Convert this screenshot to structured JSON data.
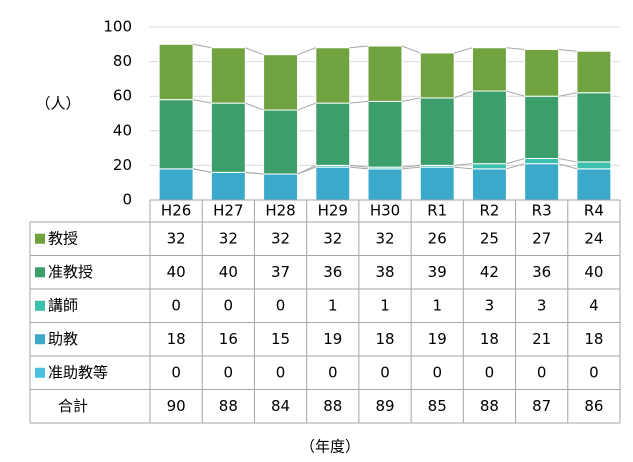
{
  "chart_data": {
    "type": "stacked_bar",
    "y_label": "（人）",
    "x_label": "（年度）",
    "categories": [
      "H26",
      "H27",
      "H28",
      "H29",
      "H30",
      "R1",
      "R2",
      "R3",
      "R4"
    ],
    "series": [
      {
        "name": "教授",
        "color": "#70a33f",
        "values": [
          32,
          32,
          32,
          32,
          32,
          26,
          25,
          27,
          24
        ]
      },
      {
        "name": "准教授",
        "color": "#3b9e6b",
        "values": [
          40,
          40,
          37,
          36,
          38,
          39,
          42,
          36,
          40
        ]
      },
      {
        "name": "講師",
        "color": "#3dbfae",
        "values": [
          0,
          0,
          0,
          1,
          1,
          1,
          3,
          3,
          4
        ]
      },
      {
        "name": "助教",
        "color": "#3ba9c9",
        "values": [
          18,
          16,
          15,
          19,
          18,
          19,
          18,
          21,
          18
        ]
      },
      {
        "name": "准助教等",
        "color": "#4cc0e0",
        "values": [
          0,
          0,
          0,
          0,
          0,
          0,
          0,
          0,
          0
        ]
      }
    ],
    "total_label": "合計",
    "totals": [
      90,
      88,
      84,
      88,
      89,
      85,
      88,
      87,
      86
    ],
    "ylim": [
      0,
      100
    ],
    "yticks": [
      0,
      20,
      40,
      60,
      80,
      100
    ],
    "grid": true
  }
}
